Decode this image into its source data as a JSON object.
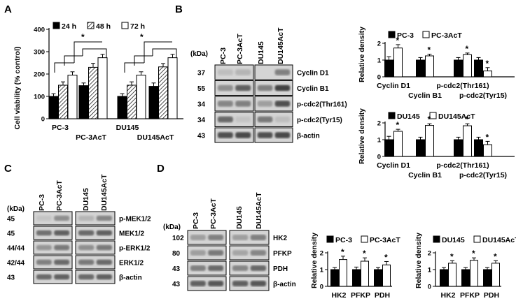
{
  "panel_labels": {
    "A": "A",
    "B": "B",
    "C": "C",
    "D": "D"
  },
  "colors": {
    "black": "#000000",
    "white": "#ffffff",
    "blot_bg": "#d4d4d4",
    "band": "#3a3a3a"
  },
  "panelA": {
    "ylabel": "Cell viability (% control)",
    "legend": [
      "24 h",
      "48 h",
      "72 h"
    ],
    "star": "*",
    "groups": [
      "PC-3",
      "PC-3AcT",
      "DU145",
      "DU145AcT"
    ]
  },
  "panelB": {
    "kda": "(kDa)",
    "lanes": [
      "PC-3",
      "PC-3AcT",
      "DU145",
      "DU145AcT"
    ],
    "rows": [
      {
        "mw": "37",
        "label": "Cyclin D1"
      },
      {
        "mw": "55",
        "label": "Cyclin B1"
      },
      {
        "mw": "34",
        "label": "p-cdc2(Thr161)"
      },
      {
        "mw": "34",
        "label": "p-cdc2(Tyr15)"
      },
      {
        "mw": "43",
        "label": "β-actin"
      }
    ],
    "ylabel": "Relative density",
    "star": "*",
    "chart_top_legend": [
      "PC-3",
      "PC-3AcT"
    ],
    "chart_bottom_legend": [
      "DU145",
      "DU145AcT"
    ],
    "cats_upper": [
      "Cyclin D1",
      "p-cdc2(Thr161)"
    ],
    "cats_lower": [
      "Cyclin B1",
      "p-cdc2(Tyr15)"
    ]
  },
  "panelC": {
    "kda": "(kDa)",
    "lanes": [
      "PC-3",
      "PC-3AcT",
      "DU145",
      "DU145AcT"
    ],
    "rows": [
      {
        "mw": "45",
        "label": "p-MEK1/2"
      },
      {
        "mw": "45",
        "label": "MEK1/2"
      },
      {
        "mw": "44/44",
        "label": "p-ERK1/2"
      },
      {
        "mw": "42/44",
        "label": "ERK1/2"
      },
      {
        "mw": "43",
        "label": "β-actin"
      }
    ]
  },
  "panelD": {
    "kda": "(kDa)",
    "lanes": [
      "PC-3",
      "PC-3AcT",
      "DU145",
      "DU145AcT"
    ],
    "rows": [
      {
        "mw": "102",
        "label": "HK2"
      },
      {
        "mw": "80",
        "label": "PFKP"
      },
      {
        "mw": "43",
        "label": "PDH"
      },
      {
        "mw": "43",
        "label": "β-actin"
      }
    ],
    "ylabel": "Relative density",
    "star": "*",
    "chart_left_legend": [
      "PC-3",
      "PC-3AcT"
    ],
    "chart_right_legend": [
      "DU145",
      "DU145AcT"
    ],
    "cats": [
      "HK2",
      "PFKP",
      "PDH"
    ]
  },
  "chart_data": [
    {
      "type": "bar",
      "id": "A",
      "categories": [
        "PC-3",
        "PC-3AcT",
        "DU145",
        "DU145AcT"
      ],
      "series": [
        {
          "name": "24 h",
          "values": [
            100,
            148,
            100,
            145
          ],
          "errors": [
            12,
            12,
            12,
            15
          ]
        },
        {
          "name": "48 h",
          "values": [
            150,
            230,
            150,
            232
          ],
          "errors": [
            15,
            18,
            15,
            15
          ]
        },
        {
          "name": "72 h",
          "values": [
            195,
            273,
            195,
            273
          ],
          "errors": [
            15,
            15,
            15,
            15
          ]
        }
      ],
      "ylabel": "Cell viability (% control)",
      "ylim": [
        0,
        400
      ],
      "yticks": [
        0,
        100,
        200,
        300,
        400
      ]
    },
    {
      "type": "bar",
      "id": "B-top",
      "categories": [
        "Cyclin D1",
        "Cyclin B1",
        "p-cdc2(Thr161)",
        "p-cdc2(Tyr15)"
      ],
      "series": [
        {
          "name": "PC-3",
          "values": [
            1,
            1,
            1,
            1
          ],
          "errors": [
            0.2,
            0.15,
            0.15,
            0.15
          ]
        },
        {
          "name": "PC-3AcT",
          "values": [
            1.72,
            1.25,
            1.32,
            0.35
          ],
          "errors": [
            0.2,
            0.1,
            0.1,
            0.2
          ]
        }
      ],
      "ylabel": "Relative density",
      "ylim": [
        0,
        2
      ],
      "yticks": [
        0,
        1,
        2
      ]
    },
    {
      "type": "bar",
      "id": "B-bottom",
      "categories": [
        "Cyclin D1",
        "Cyclin B1",
        "p-cdc2(Thr161)",
        "p-cdc2(Tyr15)"
      ],
      "series": [
        {
          "name": "DU145",
          "values": [
            1,
            1,
            1,
            1
          ],
          "errors": [
            0.2,
            0.15,
            0.15,
            0.15
          ]
        },
        {
          "name": "DU145AcT",
          "values": [
            1.5,
            1.85,
            1.83,
            0.7
          ],
          "errors": [
            0.12,
            0.1,
            0.12,
            0.2
          ]
        }
      ],
      "ylabel": "Relative density",
      "ylim": [
        0,
        2
      ],
      "yticks": [
        0,
        1,
        2
      ]
    },
    {
      "type": "bar",
      "id": "D-left",
      "categories": [
        "HK2",
        "PFKP",
        "PDH"
      ],
      "series": [
        {
          "name": "PC-3",
          "values": [
            1,
            1,
            1
          ],
          "errors": [
            0.12,
            0.15,
            0.12
          ]
        },
        {
          "name": "PC-3AcT",
          "values": [
            1.6,
            1.5,
            1.28
          ],
          "errors": [
            0.2,
            0.2,
            0.2
          ]
        }
      ],
      "ylabel": "Relative density",
      "ylim": [
        0,
        2
      ],
      "yticks": [
        0,
        1,
        2
      ]
    },
    {
      "type": "bar",
      "id": "D-right",
      "categories": [
        "HK2",
        "PFKP",
        "PDH"
      ],
      "series": [
        {
          "name": "DU145",
          "values": [
            1,
            1,
            1
          ],
          "errors": [
            0.12,
            0.12,
            0.12
          ]
        },
        {
          "name": "DU145AcT",
          "values": [
            1.38,
            1.55,
            1.38
          ],
          "errors": [
            0.15,
            0.15,
            0.15
          ]
        }
      ],
      "ylabel": "Relative density",
      "ylim": [
        0,
        2
      ],
      "yticks": [
        0,
        1,
        2
      ]
    }
  ]
}
